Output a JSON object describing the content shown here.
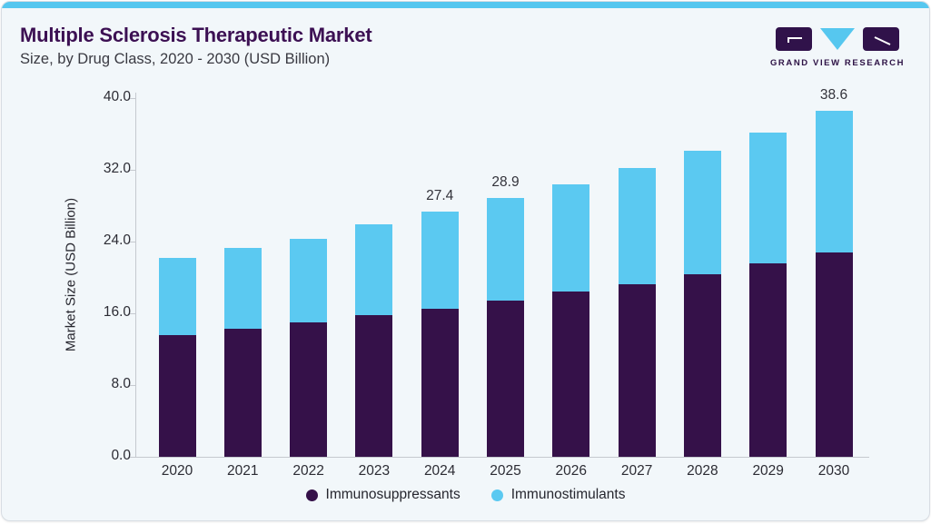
{
  "header": {
    "title": "Multiple Sclerosis Therapeutic Market",
    "subtitle": "Size, by Drug Class, 2020 - 2030 (USD Billion)"
  },
  "logo": {
    "text": "GRAND VIEW RESEARCH",
    "icon": "gvr-logo-icon"
  },
  "theme": {
    "top_bar": "#56c7ef",
    "card_bg": "#f2f7fa",
    "title_color": "#3c1053",
    "axis_line": "#c5c9cf"
  },
  "chart_data": {
    "type": "bar",
    "stacked": true,
    "title": "Multiple Sclerosis Therapeutic Market Size, by Drug Class, 2020 - 2030 (USD Billion)",
    "categories": [
      "2020",
      "2021",
      "2022",
      "2023",
      "2024",
      "2025",
      "2026",
      "2027",
      "2028",
      "2029",
      "2030"
    ],
    "series": [
      {
        "name": "Immunosuppressants",
        "color": "#351149",
        "values": [
          13.6,
          14.3,
          15.0,
          15.8,
          16.5,
          17.4,
          18.4,
          19.3,
          20.4,
          21.6,
          22.8
        ]
      },
      {
        "name": "Immunostimulants",
        "color": "#5bc9f1",
        "values": [
          8.6,
          9.0,
          9.3,
          10.1,
          10.9,
          11.5,
          12.0,
          12.9,
          13.7,
          14.6,
          15.8
        ]
      }
    ],
    "totals": [
      22.2,
      23.3,
      24.3,
      25.9,
      27.4,
      28.9,
      30.4,
      32.2,
      34.1,
      36.2,
      38.6
    ],
    "totals_labels": {
      "2024": "27.4",
      "2025": "28.9",
      "2030": "38.6"
    },
    "xlabel": "",
    "ylabel": "Market Size (USD Billion)",
    "ylim": [
      0,
      40
    ],
    "ytick_step": 8,
    "yticks": [
      "0.0",
      "8.0",
      "16.0",
      "24.0",
      "32.0",
      "40.0"
    ],
    "grid": false,
    "legend_position": "bottom"
  }
}
